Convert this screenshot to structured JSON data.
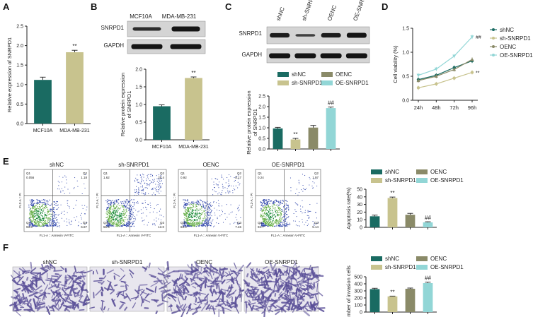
{
  "panel_labels": [
    "A",
    "B",
    "C",
    "D",
    "E",
    "F"
  ],
  "colors": {
    "teal": "#1a6b62",
    "khaki": "#c8c38e",
    "olive": "#8a8a68",
    "cyan": "#92d6d6",
    "gel_band": "#141414",
    "gel_bg": "#cfcfcf",
    "stain": "#5a4f98"
  },
  "panel_a": {
    "chart_data": {
      "type": "bar",
      "categories": [
        "MCF10A",
        "MDA-MB-231"
      ],
      "values": [
        1.12,
        1.83
      ],
      "errors": [
        0.07,
        0.05
      ],
      "ylabel": "Relative expression of SNRPD1",
      "ylim": [
        0,
        2.5
      ],
      "yticks": [
        "0.0",
        "0.5",
        "1.0",
        "1.5",
        "2.0",
        "2.5"
      ],
      "annotations": [
        "",
        "**"
      ]
    }
  },
  "panel_b": {
    "blot": {
      "lanes": [
        "MCF10A",
        "MDA-MB-231"
      ],
      "rows": [
        "SNRPD1",
        "GAPDH"
      ]
    },
    "chart_data": {
      "type": "bar",
      "categories": [
        "MCF10A",
        "MDA-MB-231"
      ],
      "values": [
        0.95,
        1.75
      ],
      "errors": [
        0.04,
        0.03
      ],
      "ylabel": "Relative protein expression of SNRPD1",
      "ylim": [
        0,
        2.0
      ],
      "yticks": [
        "0.0",
        "0.5",
        "1.0",
        "1.5",
        "2.0"
      ],
      "annotations": [
        "",
        "**"
      ]
    }
  },
  "panel_c": {
    "blot": {
      "lanes": [
        "shNC",
        "sh-SNRPD1",
        "OENC",
        "OE-SNRPD1"
      ],
      "rows": [
        "SNRPD1",
        "GAPDH"
      ]
    },
    "legend": [
      "shNC",
      "OENC",
      "sh-SNRPD1",
      "OE-SNRPD1"
    ],
    "chart_data": {
      "type": "bar",
      "categories": [
        "shNC",
        "sh-SNRPD1",
        "OENC",
        "OE-SNRPD1"
      ],
      "values": [
        0.97,
        0.45,
        1.01,
        1.93
      ],
      "errors": [
        0.05,
        0.05,
        0.1,
        0.05
      ],
      "ylabel": "Relative protein expression of SNRPD1",
      "ylim": [
        0,
        2.5
      ],
      "yticks": [
        "0.0",
        "0.5",
        "1.0",
        "1.5",
        "2.0",
        "2.5"
      ],
      "annotations": [
        "",
        "**",
        "",
        "##"
      ]
    }
  },
  "panel_d": {
    "chart_data": {
      "type": "line",
      "x": [
        "24h",
        "48h",
        "72h",
        "96h"
      ],
      "ylabel": "Cell viability (%)",
      "ylim": [
        0,
        1.5
      ],
      "yticks": [
        "0.0",
        "0.5",
        "1.0",
        "1.5"
      ],
      "series": [
        {
          "name": "shNC",
          "values": [
            0.43,
            0.52,
            0.68,
            0.82
          ],
          "marker": "circle",
          "color": "#1a6b62"
        },
        {
          "name": "sh-SNRPD1",
          "values": [
            0.26,
            0.34,
            0.46,
            0.58
          ],
          "marker": "circle",
          "color": "#c8c38e"
        },
        {
          "name": "OENC",
          "values": [
            0.41,
            0.5,
            0.64,
            0.85
          ],
          "marker": "triangle",
          "color": "#8a8a68"
        },
        {
          "name": "OE-SNRPD1",
          "values": [
            0.52,
            0.65,
            0.92,
            1.32
          ],
          "marker": "triangle-down",
          "color": "#92d6d6"
        }
      ],
      "annotations": [
        {
          "series": "OE-SNRPD1",
          "text": "##"
        },
        {
          "series": "sh-SNRPD1",
          "text": "**"
        }
      ]
    }
  },
  "panel_e": {
    "plots": [
      {
        "title": "shNC",
        "q1": "0.056",
        "q2": "1.18",
        "q3": "6.87",
        "q4": "93.3"
      },
      {
        "title": "sh-SNRPD1",
        "q1": "1.62",
        "q2": "25.4",
        "q3": "13.0",
        "q4": "59.9"
      },
      {
        "title": "OENC",
        "q1": "0.92",
        "q2": "8.17",
        "q3": "7.46",
        "q4": "83.4"
      },
      {
        "title": "OE-SNRPD1",
        "q1": "0.24",
        "q2": "1.97",
        "q3": "5.14",
        "q4": "92.7"
      }
    ],
    "xaxis": "FL1-A :: Annexin V-FITC",
    "yaxis": "FL2-A :: PI",
    "legend": [
      "shNC",
      "OENC",
      "sh-SNRPD1",
      "OE-SNRPD1"
    ],
    "chart_data": {
      "type": "bar",
      "categories": [
        "shNC",
        "sh-SNRPD1",
        "OENC",
        "OE-SNRPD1"
      ],
      "values": [
        14.5,
        38.5,
        16.5,
        6.5
      ],
      "errors": [
        1.5,
        1.2,
        1.8,
        0.8
      ],
      "ylabel": "Apoptosis rate(%)",
      "ylim": [
        0,
        50
      ],
      "yticks": [
        "0",
        "10",
        "20",
        "30",
        "40",
        "50"
      ],
      "annotations": [
        "",
        "**",
        "",
        "##"
      ]
    }
  },
  "panel_f": {
    "images": [
      "shNC",
      "sh-SNRPD1",
      "OENC",
      "OE-SNRPD1"
    ],
    "legend": [
      "shNC",
      "OENC",
      "sh-SNRPD1",
      "OE-SNRPD1"
    ],
    "chart_data": {
      "type": "bar",
      "categories": [
        "shNC",
        "sh-SNRPD1",
        "OENC",
        "OE-SNRPD1"
      ],
      "values": [
        325,
        222,
        330,
        410
      ],
      "errors": [
        12,
        4,
        10,
        14
      ],
      "ylabel": "Number of invasion cells",
      "ylim": [
        0,
        500
      ],
      "yticks": [
        "0",
        "100",
        "200",
        "300",
        "400",
        "500"
      ],
      "annotations": [
        "",
        "**",
        "",
        "##"
      ]
    }
  }
}
